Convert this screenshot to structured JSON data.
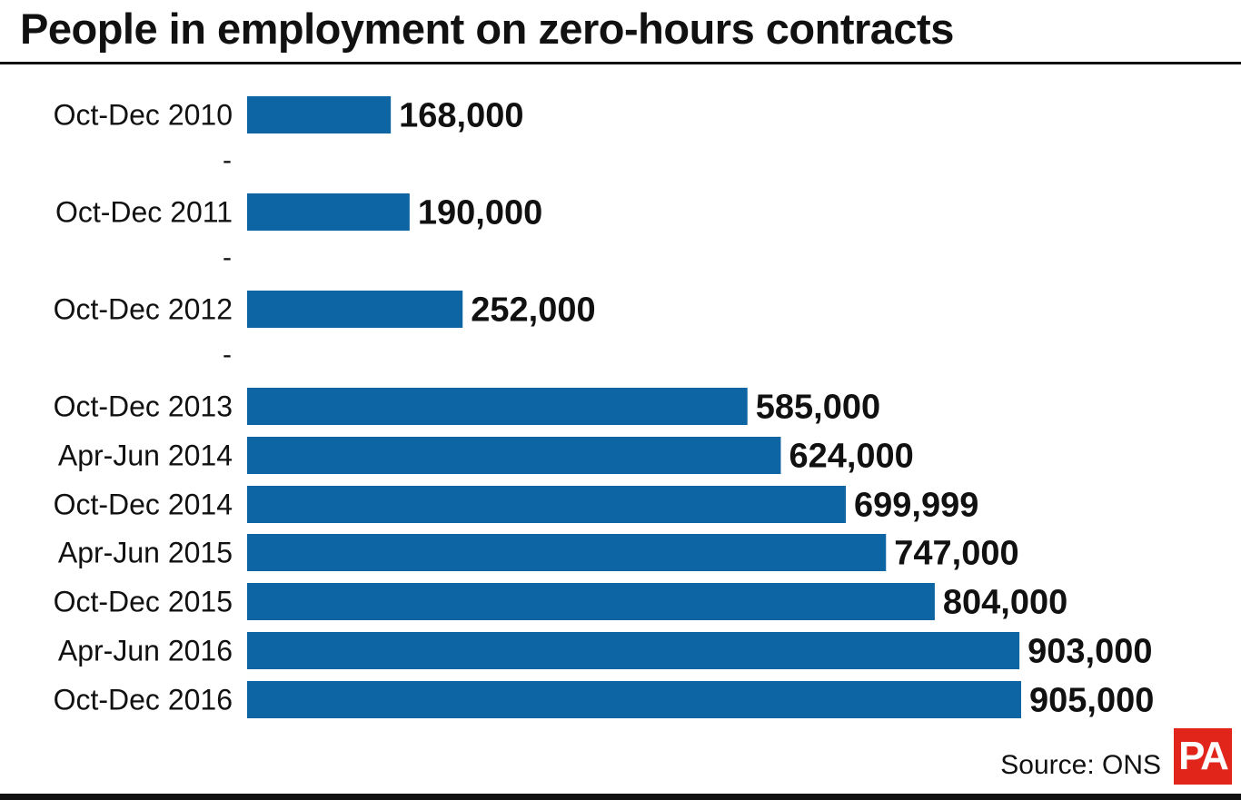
{
  "title": "People in employment on zero-hours contracts",
  "source": "Source: ONS",
  "logo_text": "PA",
  "colors": {
    "bar": "#0d66a3",
    "text": "#111111",
    "logo": "#e1251b"
  },
  "chart_data": {
    "type": "bar",
    "orientation": "horizontal",
    "title": "People in employment on zero-hours contracts",
    "categories": [
      "Oct-Dec 2010",
      "Oct-Dec 2011",
      "Oct-Dec 2012",
      "Oct-Dec 2013",
      "Apr-Jun 2014",
      "Oct-Dec 2014",
      "Apr-Jun 2015",
      "Oct-Dec 2015",
      "Apr-Jun 2016",
      "Oct-Dec 2016"
    ],
    "values": [
      168000,
      190000,
      252000,
      585000,
      624000,
      699999,
      747000,
      804000,
      903000,
      905000
    ],
    "labels": [
      "168,000",
      "190,000",
      "252,000",
      "585,000",
      "624,000",
      "699,999",
      "747,000",
      "804,000",
      "903,000",
      "905,000"
    ],
    "gap_markers": [
      "-",
      "-",
      "-"
    ],
    "xlim": [
      0,
      905000
    ],
    "grid": false,
    "legend": "none"
  }
}
